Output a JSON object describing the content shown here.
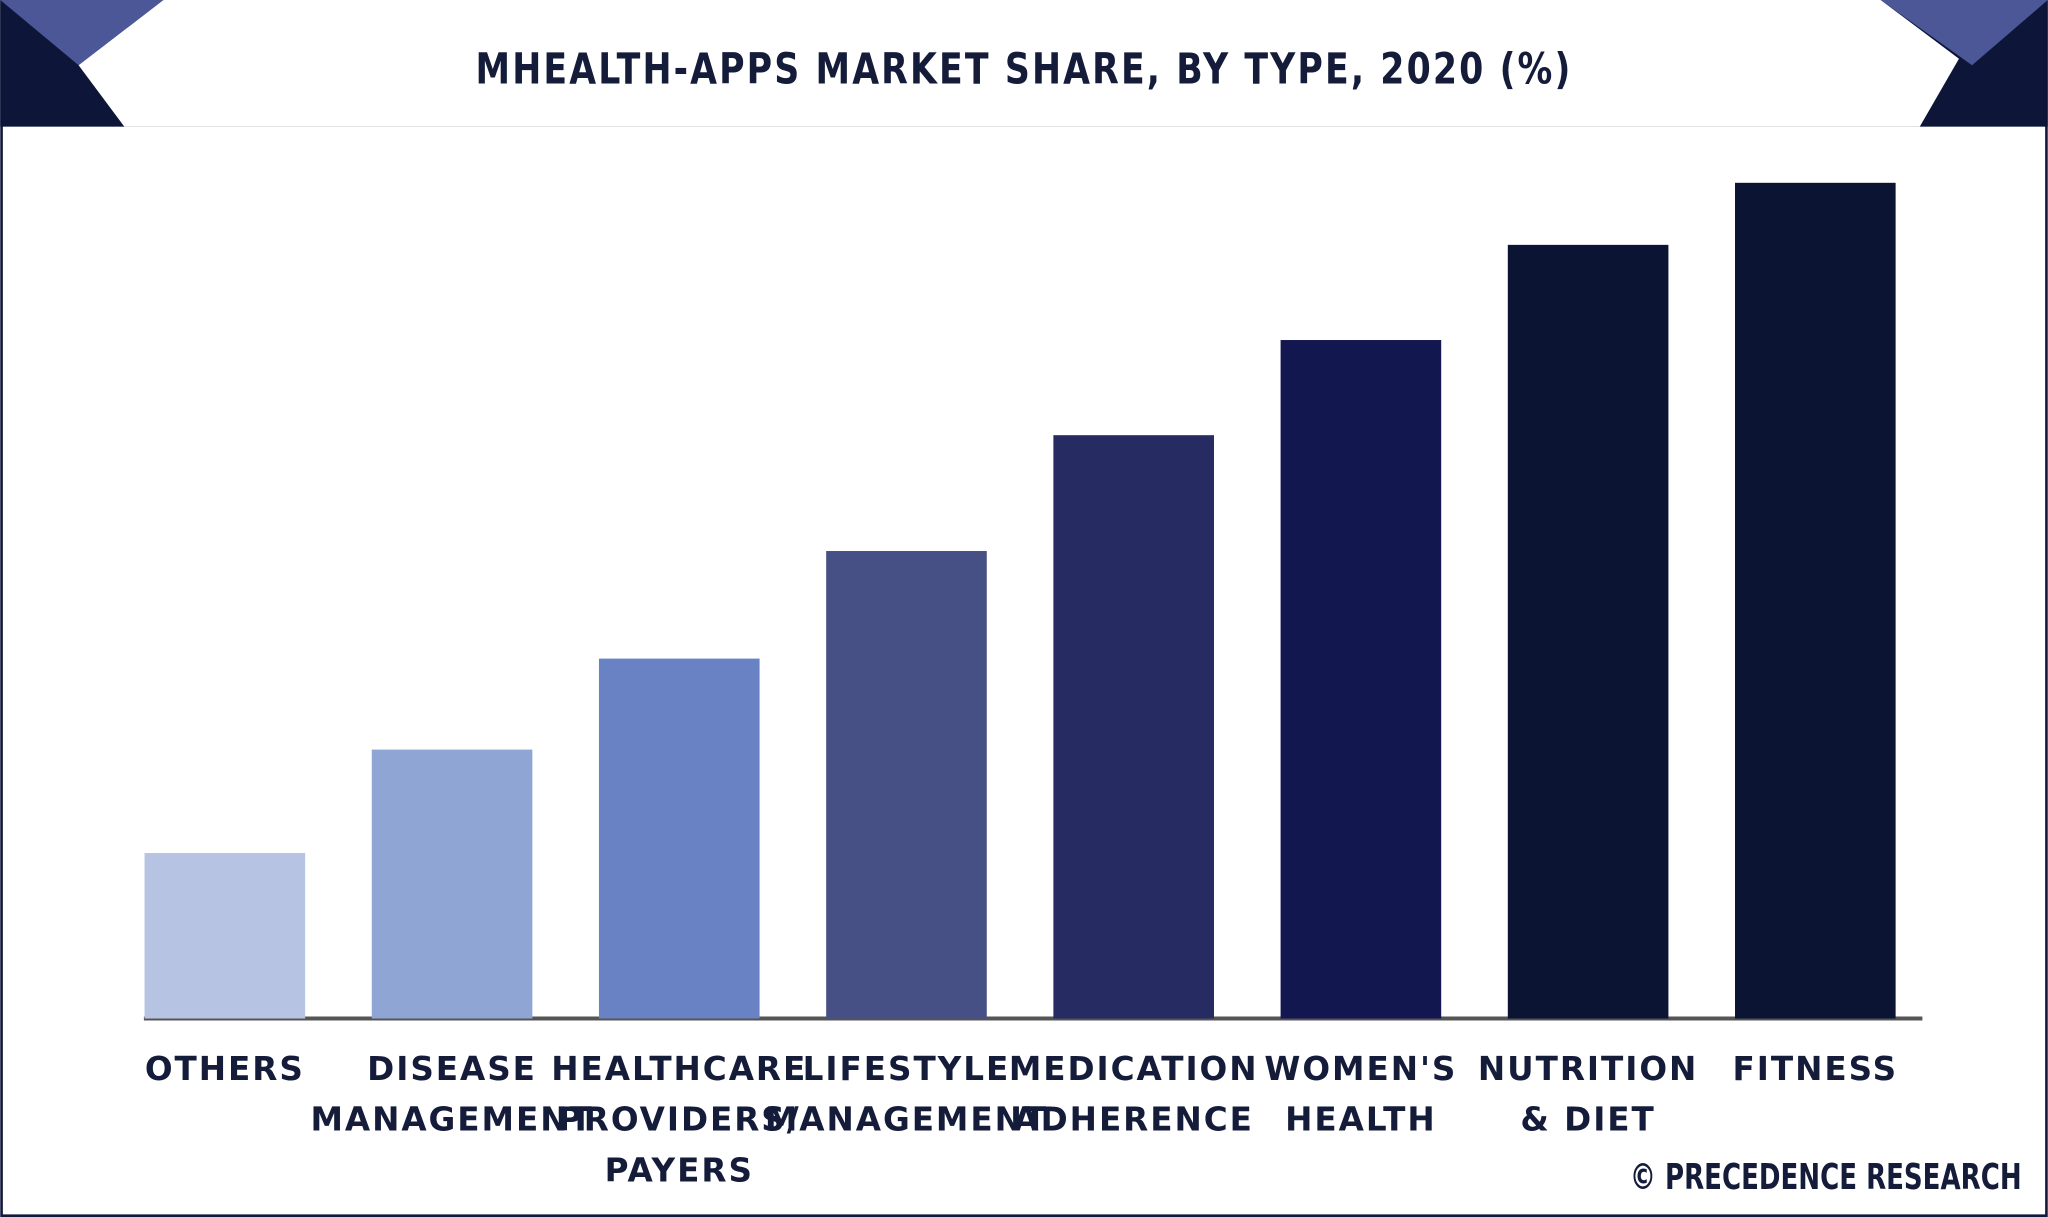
{
  "chart_data": {
    "type": "bar",
    "title": "MHEALTH-APPS MARKET SHARE, BY TYPE, 2020 (%)",
    "categories": [
      "OTHERS",
      "DISEASE\nMANAGEMENT",
      "HEALTHCARE\nPROVIDERS/\nPAYERS",
      "LIFESTYLE\nMANAGEMENT",
      "MEDICATION\nADHERENCE",
      "WOMEN'S\nHEALTH",
      "NUTRITION\n& DIET",
      "FITNESS"
    ],
    "values": [
      4.0,
      6.5,
      8.7,
      11.3,
      14.1,
      16.4,
      18.7,
      20.2
    ],
    "colors": [
      "#b7c3e3",
      "#8fa5d4",
      "#6982c4",
      "#465085",
      "#262c62",
      "#13174f",
      "#0b1533",
      "#0b1533"
    ],
    "source": "© PRECEDENCE RESEARCH"
  }
}
